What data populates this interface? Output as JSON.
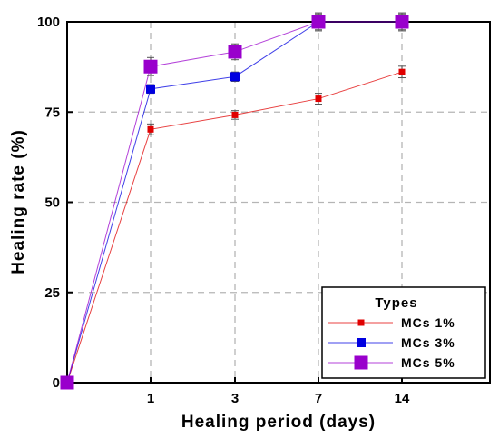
{
  "chart_data": {
    "type": "line",
    "xlabel": "Healing period (days)",
    "ylabel": "Healing rate (%)",
    "x": [
      "0",
      "1",
      "3",
      "7",
      "14"
    ],
    "x_tick_labels": [
      "1",
      "3",
      "7",
      "14"
    ],
    "y_ticks": [
      0,
      25,
      50,
      75,
      100
    ],
    "ylim": [
      0,
      100
    ],
    "grid": true,
    "legend": {
      "title": "Types",
      "placement": "bottom-right"
    },
    "series": [
      {
        "name": "MCs 1%",
        "color": "#e00000",
        "values": [
          0,
          70.2,
          74.2,
          78.7,
          86.1
        ],
        "errors": [
          0,
          1.5,
          1.2,
          1.5,
          1.6
        ]
      },
      {
        "name": "MCs 3%",
        "color": "#0000e0",
        "values": [
          0,
          81.4,
          84.8,
          100,
          100
        ],
        "errors": [
          0,
          1.2,
          1.3,
          2.2,
          2.2
        ]
      },
      {
        "name": "MCs 5%",
        "color": "#9900cc",
        "values": [
          0,
          87.6,
          91.7,
          100,
          100
        ],
        "errors": [
          0,
          2.5,
          2.2,
          2.5,
          2.5
        ]
      }
    ]
  }
}
